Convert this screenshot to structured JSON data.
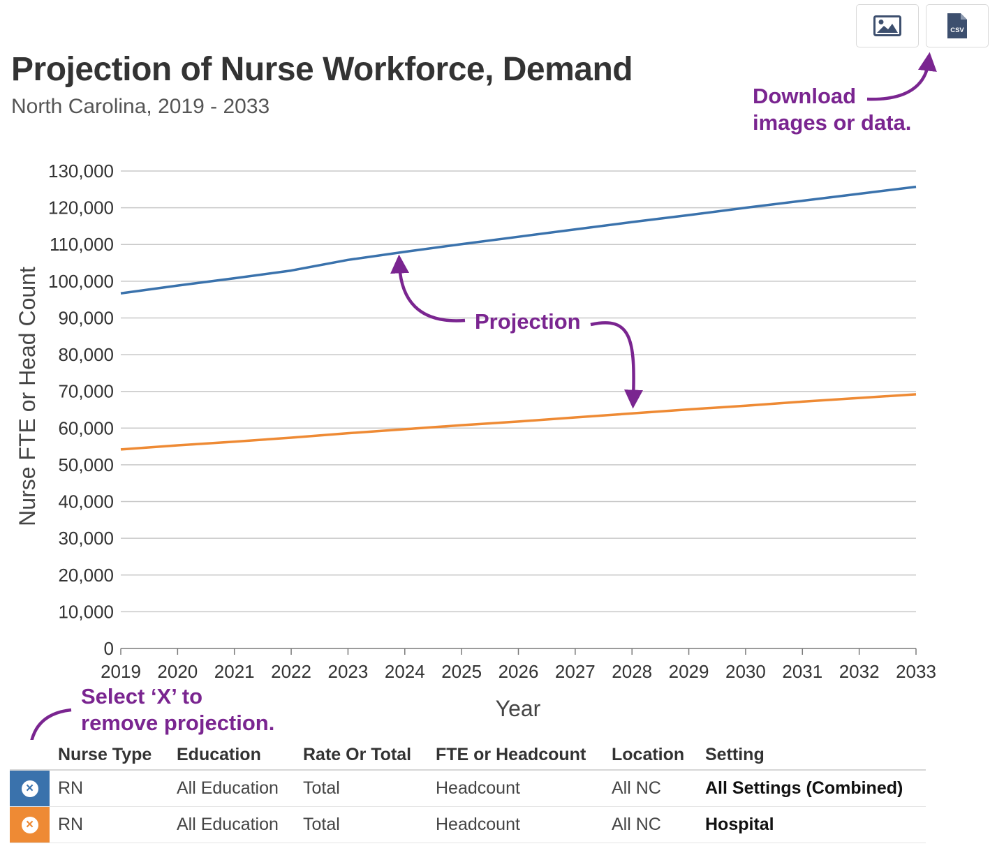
{
  "toolbar": {
    "image_icon": "image-icon",
    "csv_icon": "csv-file-icon",
    "csv_label": "CSV"
  },
  "chart_data": {
    "type": "line",
    "title": "Projection of Nurse Workforce, Demand",
    "subtitle": "North Carolina, 2019 - 2033",
    "xlabel": "Year",
    "ylabel": "Nurse FTE or Head Count",
    "x": [
      2019,
      2020,
      2021,
      2022,
      2023,
      2024,
      2025,
      2026,
      2027,
      2028,
      2029,
      2030,
      2031,
      2032,
      2033
    ],
    "xlim": [
      2019,
      2033
    ],
    "ylim": [
      0,
      130000
    ],
    "yticks": [
      0,
      10000,
      20000,
      30000,
      40000,
      50000,
      60000,
      70000,
      80000,
      90000,
      100000,
      110000,
      120000,
      130000
    ],
    "grid": true,
    "legend": "table-below",
    "series": [
      {
        "color": "#3a72ac",
        "values": [
          96700,
          98800,
          100800,
          102900,
          105800,
          108000,
          110100,
          112100,
          114100,
          116100,
          118000,
          120000,
          121900,
          123800,
          125700
        ]
      },
      {
        "color": "#ee8a34",
        "values": [
          54200,
          55300,
          56300,
          57400,
          58600,
          59700,
          60800,
          61800,
          62900,
          64000,
          65100,
          66100,
          67200,
          68200,
          69200
        ]
      }
    ],
    "annotations": {
      "download": [
        "Download",
        "images or data."
      ],
      "projection": "Projection",
      "remove": [
        "Select ‘X’ to",
        "remove projection."
      ]
    }
  },
  "legend_table": {
    "headers": [
      "Nurse Type",
      "Education",
      "Rate Or Total",
      "FTE or Headcount",
      "Location",
      "Setting"
    ],
    "rows": [
      {
        "color": "#3a72ac",
        "remove_symbol": "×",
        "nurse_type": "RN",
        "education": "All Education",
        "rate_or_total": "Total",
        "fte_or_headcount": "Headcount",
        "location": "All NC",
        "setting": "All Settings (Combined)"
      },
      {
        "color": "#ee8a34",
        "remove_symbol": "×",
        "nurse_type": "RN",
        "education": "All Education",
        "rate_or_total": "Total",
        "fte_or_headcount": "Headcount",
        "location": "All NC",
        "setting": "Hospital"
      }
    ]
  }
}
